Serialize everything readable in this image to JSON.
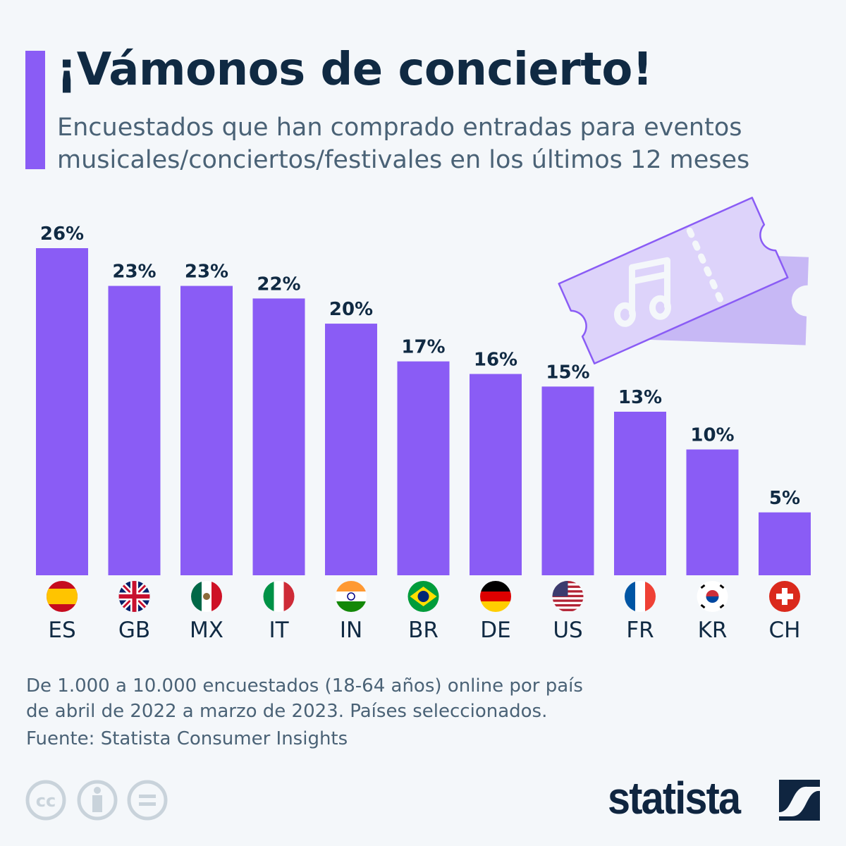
{
  "title": "¡Vámonos de concierto!",
  "subtitle_line1": "Encuestados que han comprado entradas para eventos",
  "subtitle_line2": "musicales/conciertos/festivales en los últimos 12 meses",
  "chart_data": {
    "type": "bar",
    "categories": [
      "ES",
      "GB",
      "MX",
      "IT",
      "IN",
      "BR",
      "DE",
      "US",
      "FR",
      "KR",
      "CH"
    ],
    "values": [
      26,
      23,
      23,
      22,
      20,
      17,
      16,
      15,
      13,
      10,
      5
    ],
    "value_labels": [
      "26%",
      "23%",
      "23%",
      "22%",
      "20%",
      "17%",
      "16%",
      "15%",
      "13%",
      "10%",
      "5%"
    ],
    "unit": "%",
    "ylim": [
      0,
      26
    ],
    "grid": false,
    "bar_color": "#8a5cf5"
  },
  "note_line1": "De 1.000 a 10.000 encuestados (18-64 años) online por país",
  "note_line2": "de abril de 2022 a marzo de 2023. Países seleccionados.",
  "source": "Fuente: Statista Consumer Insights",
  "logo": "statista",
  "license_icons": [
    "cc-icon",
    "attribution-icon",
    "no-derivatives-icon"
  ]
}
